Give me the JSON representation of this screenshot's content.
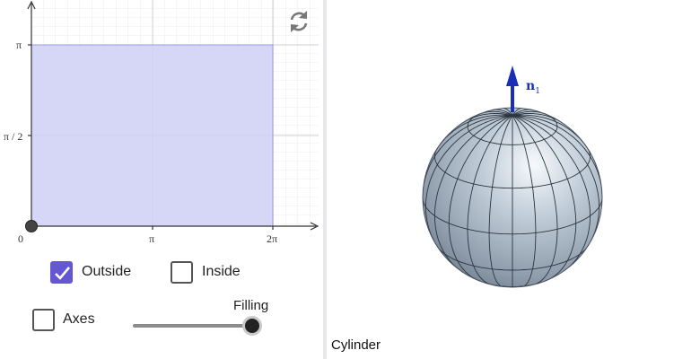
{
  "graph": {
    "x_ticks": [
      "0",
      "π",
      "2π"
    ],
    "y_ticks": [
      "π",
      "π / 2"
    ],
    "fill_color": "#cfd0f5",
    "axis_color": "#333333"
  },
  "controls": {
    "outside": {
      "label": "Outside",
      "checked": true
    },
    "inside": {
      "label": "Inside",
      "checked": false
    },
    "axes": {
      "label": "Axes",
      "checked": false
    },
    "filling": {
      "label": "Filling",
      "value": 1.0
    }
  },
  "reset_icon": "refresh-icon",
  "view3d": {
    "normal_label": "n",
    "normal_subscript": "1",
    "surface_name": "Cylinder",
    "sphere_color": "#a6b4c2",
    "arrow_color": "#1a2fb5"
  }
}
